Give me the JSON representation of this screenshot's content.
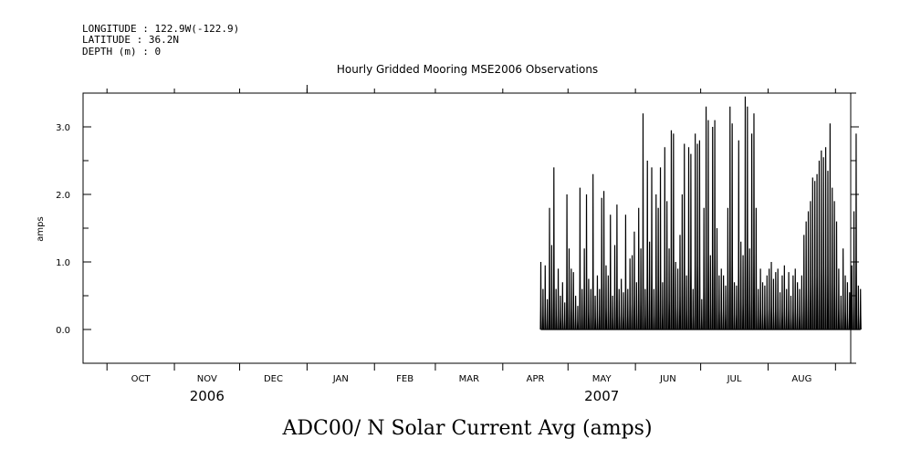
{
  "header": {
    "longitude": "LONGITUDE : 122.9W(-122.9)",
    "latitude": "LATITUDE : 36.2N",
    "depth": "DEPTH (m) : 0"
  },
  "chart_data": {
    "type": "line",
    "title": "Hourly Gridded Mooring MSE2006 Observations",
    "xlabel": "ADC00/ N Solar Current Avg (amps)",
    "ylabel": "amps",
    "ylim": [
      -0.5,
      3.5
    ],
    "yticks": [
      {
        "value": 0.0,
        "label": "0.0"
      },
      {
        "value": 1.0,
        "label": "1.0"
      },
      {
        "value": 2.0,
        "label": "2.0"
      },
      {
        "value": 3.0,
        "label": "3.0"
      }
    ],
    "month_boundaries": [
      "2006-10-01",
      "2006-11-01",
      "2006-12-01",
      "2007-01-01",
      "2007-02-01",
      "2007-03-01",
      "2007-04-01",
      "2007-05-01",
      "2007-06-01",
      "2007-07-01",
      "2007-08-01",
      "2007-09-01"
    ],
    "months": [
      "OCT",
      "NOV",
      "DEC",
      "JAN",
      "FEB",
      "MAR",
      "APR",
      "MAY",
      "JUN",
      "JUL",
      "AUG"
    ],
    "years": [
      {
        "label": "2006",
        "under_month": 1
      },
      {
        "label": "2007",
        "under_month": 7
      }
    ],
    "series": [
      {
        "name": "ADC00/ N Solar Current Avg",
        "start_day": 210,
        "daily_peaks": [
          1.0,
          0.6,
          0.95,
          0.45,
          1.8,
          1.25,
          2.4,
          0.6,
          0.9,
          0.5,
          0.7,
          0.4,
          2.0,
          1.2,
          0.9,
          0.85,
          0.5,
          0.35,
          2.1,
          0.6,
          1.2,
          2.0,
          0.75,
          0.6,
          2.3,
          0.5,
          0.8,
          0.6,
          1.95,
          2.05,
          0.95,
          0.8,
          1.7,
          0.5,
          1.25,
          1.85,
          0.6,
          0.75,
          0.55,
          1.7,
          0.6,
          1.05,
          1.1,
          1.45,
          0.7,
          1.8,
          1.2,
          3.2,
          0.6,
          2.5,
          1.3,
          2.4,
          0.6,
          2.0,
          1.8,
          2.4,
          0.7,
          2.7,
          1.9,
          1.2,
          2.95,
          2.9,
          1.0,
          0.9,
          1.4,
          2.0,
          2.75,
          0.8,
          2.7,
          2.6,
          0.6,
          2.9,
          2.75,
          2.8,
          0.45,
          1.8,
          3.3,
          3.1,
          1.1,
          3.0,
          3.1,
          1.5,
          0.8,
          0.9,
          0.8,
          0.65,
          1.8,
          3.3,
          3.05,
          0.7,
          0.65,
          2.8,
          1.3,
          1.1,
          3.45,
          3.3,
          1.2,
          2.9,
          3.2,
          1.8,
          0.6,
          0.9,
          0.7,
          0.65,
          0.8,
          0.9,
          1.0,
          0.75,
          0.85,
          0.9,
          0.55,
          0.8,
          0.95,
          0.6,
          0.85,
          0.5,
          0.8,
          0.9,
          0.7,
          0.6,
          0.8,
          1.4,
          1.6,
          1.75,
          1.9,
          2.25,
          2.2,
          2.3,
          2.5,
          2.65,
          2.55,
          2.7,
          2.35,
          3.05,
          2.1,
          1.9,
          1.6,
          0.9,
          0.5,
          1.2,
          0.8,
          0.7,
          0.55,
          0.95,
          1.75,
          2.9,
          0.65,
          0.6
        ]
      }
    ]
  }
}
